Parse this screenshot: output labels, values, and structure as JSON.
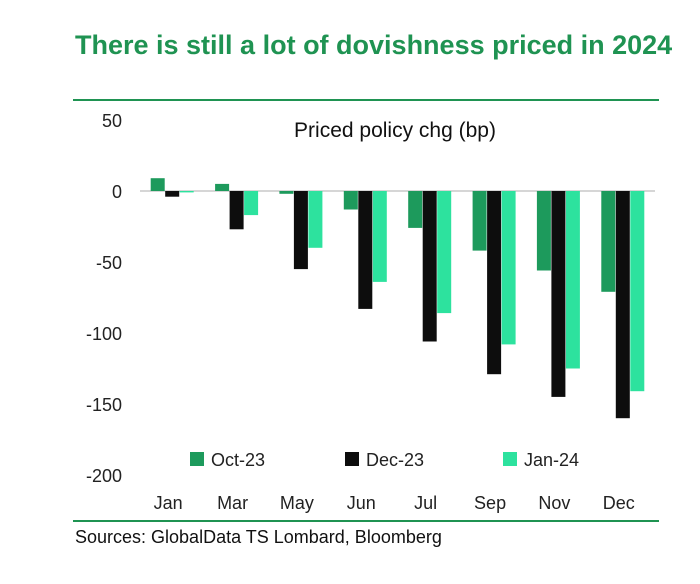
{
  "title": "There is still a lot of dovishness priced in 2024",
  "source": "Sources: GlobalData TS Lombard, Bloomberg",
  "chart_data": {
    "type": "bar",
    "title": "Priced policy chg (bp)",
    "xlabel": "",
    "ylabel": "",
    "ylim": [
      -200,
      50
    ],
    "yticks": [
      50,
      0,
      -50,
      -100,
      -150,
      -200
    ],
    "categories": [
      "Jan",
      "Mar",
      "May",
      "Jun",
      "Jul",
      "Sep",
      "Nov",
      "Dec"
    ],
    "series": [
      {
        "name": "Oct-23",
        "color": "#1d9a5c",
        "values": [
          9,
          5,
          -2,
          -13,
          -26,
          -42,
          -56,
          -71
        ]
      },
      {
        "name": "Dec-23",
        "color": "#0d0d0d",
        "values": [
          -4,
          -27,
          -55,
          -83,
          -106,
          -129,
          -145,
          -160
        ]
      },
      {
        "name": "Jan-24",
        "color": "#2de29e",
        "values": [
          -1,
          -17,
          -40,
          -64,
          -86,
          -108,
          -125,
          -141
        ]
      }
    ],
    "legend": "bottom"
  }
}
